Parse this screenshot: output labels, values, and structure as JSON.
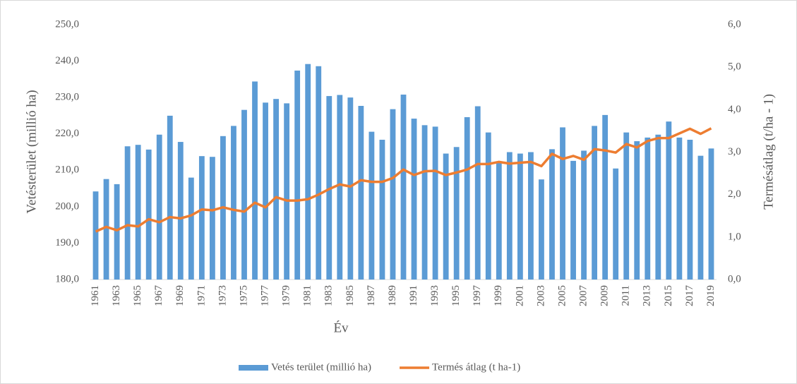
{
  "chart_data": {
    "type": "bar",
    "x_label": "Év",
    "y_label": "Vetésterület (millió ha)",
    "y2_label": "Termésátlag (t/ha - 1)",
    "categories": [
      "1961",
      null,
      "1963",
      null,
      "1965",
      null,
      "1967",
      null,
      "1969",
      null,
      "1971",
      null,
      "1973",
      null,
      "1975",
      null,
      "1977",
      null,
      "1979",
      null,
      "1981",
      null,
      "1983",
      null,
      "1985",
      null,
      "1987",
      null,
      "1989",
      null,
      "1991",
      null,
      "1993",
      null,
      "1995",
      null,
      "1997",
      null,
      "1999",
      null,
      "2001",
      null,
      "2003",
      null,
      "2005",
      null,
      "2007",
      null,
      "2009",
      null,
      "2011",
      null,
      "2013",
      null,
      "2015",
      null,
      "2017",
      null,
      "2019"
    ],
    "series": [
      {
        "name": "Vetés terület (millió ha)",
        "color": "#5b9bd5",
        "type": "bar",
        "values": [
          204.2,
          207.6,
          206.2,
          216.6,
          217.0,
          215.7,
          219.8,
          225.0,
          217.8,
          208.0,
          213.9,
          213.7,
          219.4,
          222.2,
          226.6,
          234.4,
          228.6,
          229.6,
          228.4,
          237.4,
          239.2,
          238.6,
          230.4,
          230.7,
          230.0,
          227.7,
          220.6,
          218.4,
          226.8,
          230.8,
          224.2,
          222.4,
          222.0,
          214.6,
          216.4,
          224.6,
          227.6,
          220.4,
          212.2,
          215.0,
          214.6,
          215.0,
          207.5,
          215.8,
          221.8,
          212.6,
          215.4,
          222.2,
          225.2,
          210.5,
          220.4,
          218.0,
          219.0,
          219.8,
          223.4,
          219.0,
          218.4,
          214.0,
          216.0
        ]
      },
      {
        "name": "Termés átlag (t ha-1)",
        "color": "#ed7d31",
        "type": "line",
        "axis": "y2",
        "values": [
          1.13,
          1.24,
          1.16,
          1.28,
          1.25,
          1.42,
          1.35,
          1.47,
          1.44,
          1.51,
          1.65,
          1.63,
          1.7,
          1.64,
          1.6,
          1.81,
          1.7,
          1.94,
          1.86,
          1.86,
          1.89,
          2.0,
          2.13,
          2.24,
          2.19,
          2.34,
          2.3,
          2.3,
          2.39,
          2.59,
          2.46,
          2.55,
          2.56,
          2.46,
          2.52,
          2.59,
          2.72,
          2.72,
          2.77,
          2.73,
          2.75,
          2.77,
          2.67,
          2.96,
          2.84,
          2.91,
          2.82,
          3.07,
          3.04,
          2.99,
          3.19,
          3.11,
          3.26,
          3.33,
          3.33,
          3.44,
          3.55,
          3.43,
          3.56
        ]
      }
    ],
    "ylim": [
      180,
      250
    ],
    "yticks": [
      {
        "value": 180,
        "label": "180,0"
      },
      {
        "value": 190,
        "label": "190,0"
      },
      {
        "value": 200,
        "label": "200,0"
      },
      {
        "value": 210,
        "label": "210,0"
      },
      {
        "value": 220,
        "label": "220,0"
      },
      {
        "value": 230,
        "label": "230,0"
      },
      {
        "value": 240,
        "label": "240,0"
      },
      {
        "value": 250,
        "label": "250,0"
      }
    ],
    "y2lim": [
      0,
      6
    ],
    "y2ticks": [
      {
        "value": 0,
        "label": "0,0"
      },
      {
        "value": 1,
        "label": "1,0"
      },
      {
        "value": 2,
        "label": "2,0"
      },
      {
        "value": 3,
        "label": "3,0"
      },
      {
        "value": 4,
        "label": "4,0"
      },
      {
        "value": 5,
        "label": "5,0"
      },
      {
        "value": 6,
        "label": "6,0"
      }
    ],
    "legend": "bottom"
  }
}
